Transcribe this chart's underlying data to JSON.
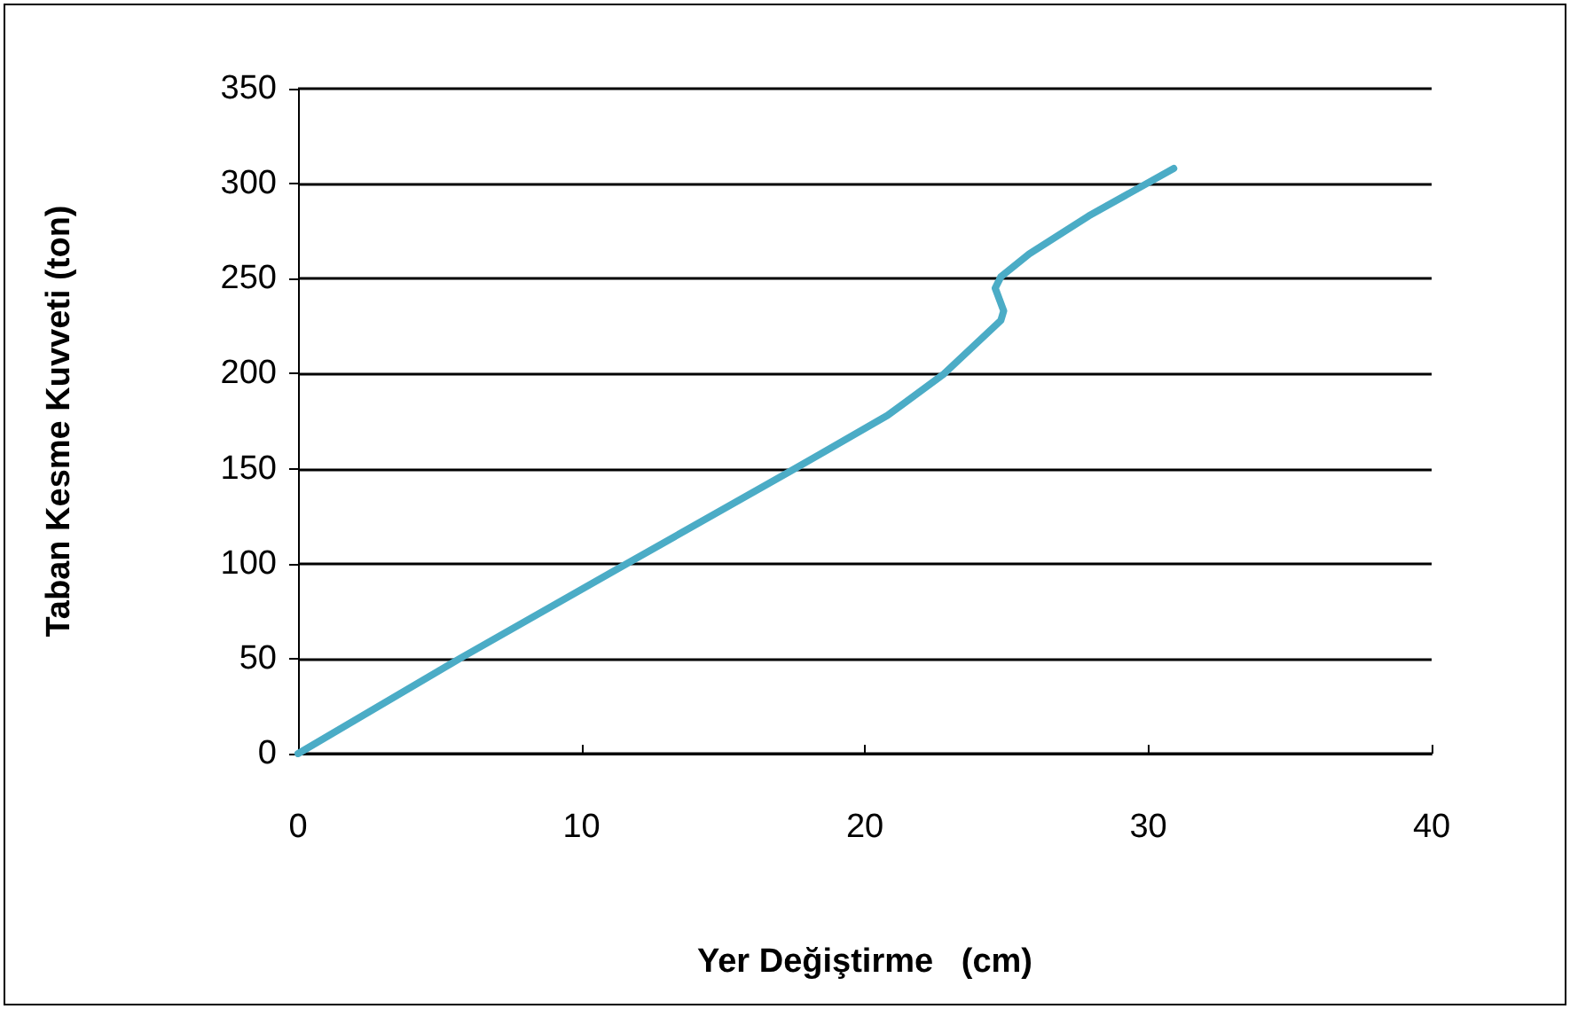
{
  "chart_data": {
    "type": "line",
    "xlabel": "Yer Değiştirme   (cm)",
    "ylabel": "Taban Kesme Kuvveti (ton)",
    "xlim": [
      0,
      40
    ],
    "xticks": [
      0,
      10,
      20,
      30,
      40
    ],
    "ylim": [
      0,
      350
    ],
    "yticks": [
      0,
      50,
      100,
      150,
      200,
      250,
      300,
      350
    ],
    "grid": "y",
    "marker": "none",
    "line_style": "solid",
    "series": [
      {
        "color": "#4bacc6",
        "x": [
          0,
          5.7,
          11.6,
          17.3,
          20.8,
          22.8,
          24.8,
          24.9,
          24.6,
          24.8,
          25.8,
          27.9,
          30.9
        ],
        "values": [
          0,
          50,
          100,
          148,
          178,
          200,
          228,
          233,
          245,
          251,
          263,
          283,
          308
        ]
      }
    ]
  }
}
